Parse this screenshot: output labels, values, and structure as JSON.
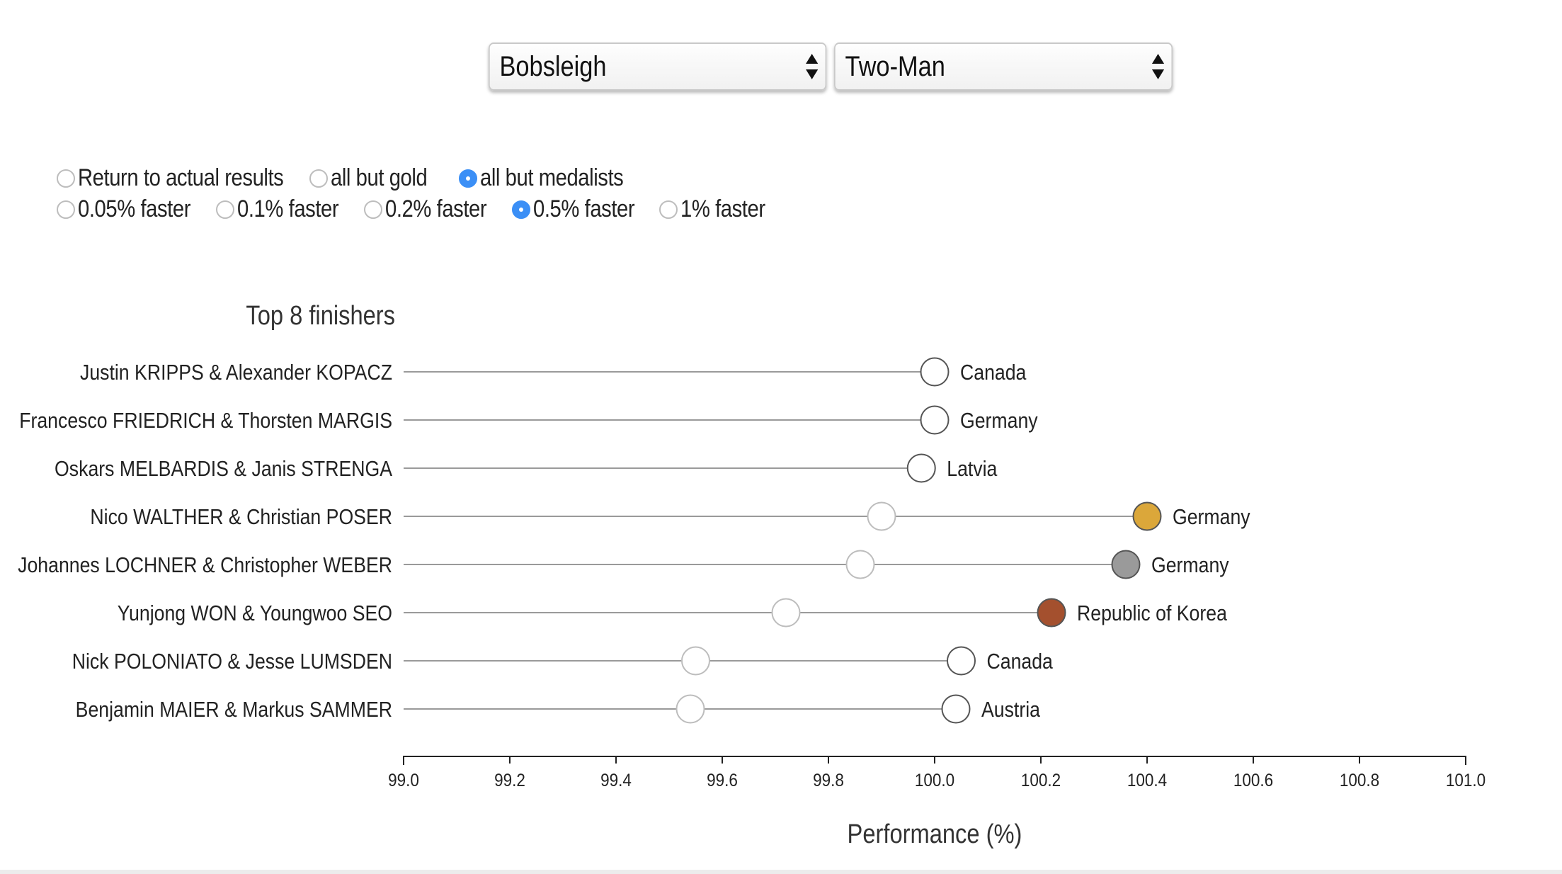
{
  "selects": {
    "sport": {
      "value": "Bobsleigh"
    },
    "event": {
      "value": "Two-Man"
    }
  },
  "radios": {
    "row1": [
      {
        "label": "Return to actual results",
        "checked": false
      },
      {
        "label": "all but gold",
        "checked": false
      },
      {
        "label": "all but medalists",
        "checked": true
      }
    ],
    "row2": [
      {
        "label": "0.05% faster",
        "checked": false
      },
      {
        "label": "0.1% faster",
        "checked": false
      },
      {
        "label": "0.2% faster",
        "checked": false
      },
      {
        "label": "0.5% faster",
        "checked": true
      },
      {
        "label": "1% faster",
        "checked": false
      }
    ]
  },
  "colors": {
    "gold": "#dba73a",
    "silver": "#9a9a9a",
    "bronze": "#a4502e",
    "line": "#9a9a9a",
    "marker_stroke": "#555555"
  },
  "chart_data": {
    "type": "dumbbell",
    "title": "Top 8 finishers",
    "xlabel": "Performance (%)",
    "xlim": [
      99.0,
      101.0
    ],
    "xticks": [
      "99.0",
      "99.2",
      "99.4",
      "99.6",
      "99.8",
      "100.0",
      "100.2",
      "100.4",
      "100.6",
      "100.8",
      "101.0"
    ],
    "rows": [
      {
        "team": "Justin KRIPPS & Alexander KOPACZ",
        "country": "Canada",
        "actual": 100.0,
        "adjusted": 100.0,
        "medal": "none"
      },
      {
        "team": "Francesco FRIEDRICH & Thorsten MARGIS",
        "country": "Germany",
        "actual": 100.0,
        "adjusted": 100.0,
        "medal": "none"
      },
      {
        "team": "Oskars MELBARDIS & Janis STRENGA",
        "country": "Latvia",
        "actual": 99.975,
        "adjusted": 99.975,
        "medal": "none"
      },
      {
        "team": "Nico WALTHER & Christian POSER",
        "country": "Germany",
        "actual": 100.4,
        "adjusted": 99.9,
        "medal": "gold"
      },
      {
        "team": "Johannes LOCHNER & Christopher WEBER",
        "country": "Germany",
        "actual": 100.36,
        "adjusted": 99.86,
        "medal": "silver"
      },
      {
        "team": "Yunjong WON & Youngwoo SEO",
        "country": "Republic of Korea",
        "actual": 100.22,
        "adjusted": 99.72,
        "medal": "bronze"
      },
      {
        "team": "Nick POLONIATO & Jesse LUMSDEN",
        "country": "Canada",
        "actual": 100.05,
        "adjusted": 99.55,
        "medal": "none"
      },
      {
        "team": "Benjamin MAIER & Markus SAMMER",
        "country": "Austria",
        "actual": 100.04,
        "adjusted": 99.54,
        "medal": "none"
      }
    ]
  }
}
